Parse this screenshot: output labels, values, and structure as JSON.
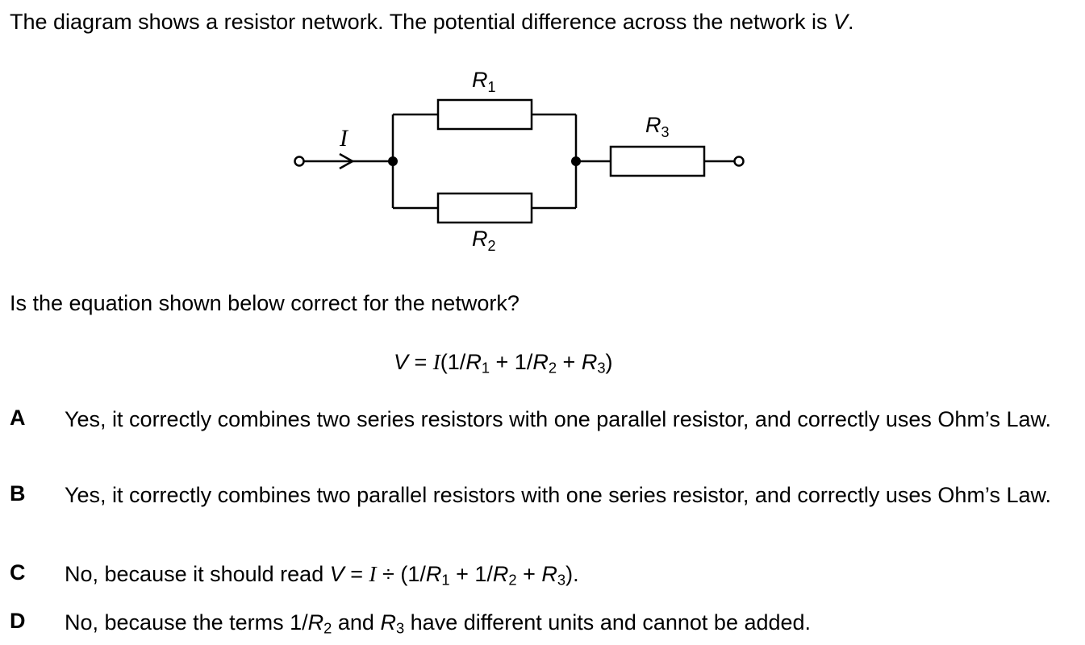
{
  "intro": {
    "text_before": "The diagram shows a resistor network. The potential difference across the network is ",
    "var": "V",
    "text_after": "."
  },
  "diagram": {
    "current_label": "I",
    "resistors": [
      {
        "symbol": "R",
        "sub": "1"
      },
      {
        "symbol": "R",
        "sub": "2"
      },
      {
        "symbol": "R",
        "sub": "3"
      }
    ]
  },
  "question": "Is the equation shown below correct for the network?",
  "equation": {
    "v": "V",
    "eq": " = ",
    "i": "I",
    "open": "(1/",
    "r1": "R",
    "s1": "1",
    "plus1": " + 1/",
    "r2": "R",
    "s2": "2",
    "plus2": " + ",
    "r3": "R",
    "s3": "3",
    "close": ")"
  },
  "options": [
    {
      "letter": "A",
      "text": "Yes, it correctly combines two series resistors with one parallel resistor, and correctly uses Ohm’s Law."
    },
    {
      "letter": "B",
      "text": "Yes, it correctly combines two parallel resistors with one series resistor, and correctly uses Ohm’s Law."
    },
    {
      "letter": "C",
      "t1": "No, because it should read ",
      "v": "V",
      "eq": " = ",
      "i": "I",
      "div": " ÷ (1/",
      "r1": "R",
      "s1": "1",
      "plus1": " + 1/",
      "r2": "R",
      "s2": "2",
      "plus2": " + ",
      "r3": "R",
      "s3": "3",
      "end": ")."
    },
    {
      "letter": "D",
      "t1": "No, because the terms 1/",
      "r2": "R",
      "s2": "2",
      "mid": " and ",
      "r3": "R",
      "s3": "3",
      "end": " have different units and cannot be added."
    }
  ]
}
